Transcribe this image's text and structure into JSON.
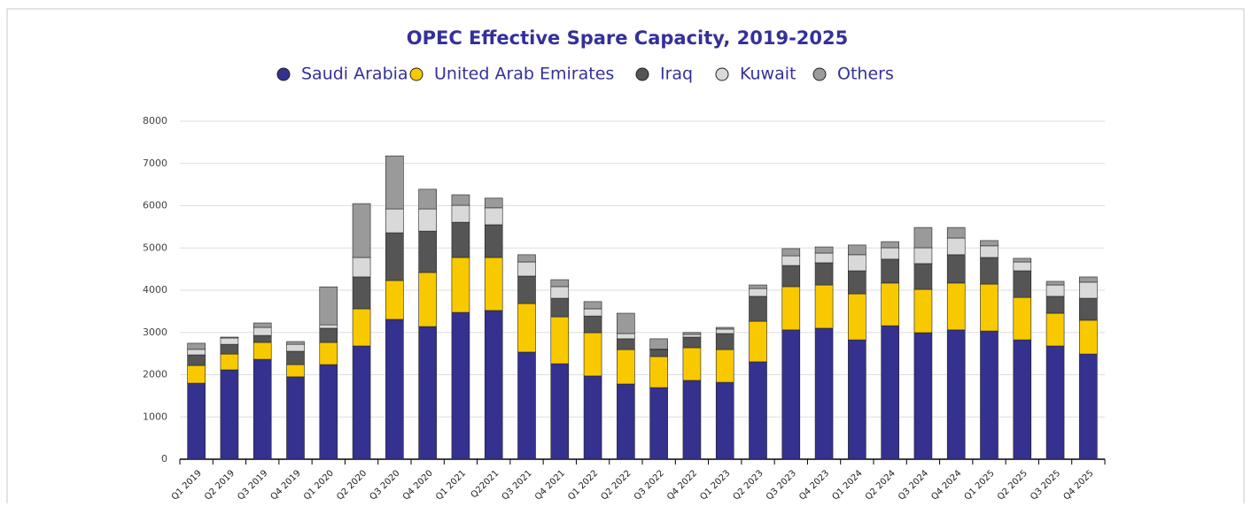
{
  "chart_data": {
    "type": "bar",
    "stacked": true,
    "title": "OPEC Effective Spare Capacity, 2019-2025",
    "categories": [
      "Q1 2019",
      "Q2 2019",
      "Q3 2019",
      "Q4 2019",
      "Q1 2020",
      "Q2 2020",
      "Q3 2020",
      "Q4 2020",
      "Q1 2021",
      "Q22021",
      "Q3 2021",
      "Q4 2021",
      "Q1 2022",
      "Q2 2022",
      "Q3 2022",
      "Q4 2022",
      "Q1 2023",
      "Q2 2023",
      "Q3 2023",
      "Q4 2023",
      "Q1 2024",
      "Q2 2024",
      "Q3 2024",
      "Q4 2024",
      "Q1 2025",
      "Q2 2025",
      "Q3 2025",
      "Q4 2025"
    ],
    "series": [
      {
        "name": "Saudi Arabia",
        "color": "#34318f",
        "values": [
          1800,
          2115,
          2365,
          1950,
          2240,
          2680,
          3310,
          3140,
          3475,
          3520,
          2535,
          2260,
          1970,
          1780,
          1695,
          1865,
          1820,
          2305,
          3060,
          3100,
          2825,
          3160,
          2995,
          3060,
          3035,
          2825,
          2680,
          2490
        ]
      },
      {
        "name": "United Arab Emirates",
        "color": "#f9c900",
        "values": [
          420,
          375,
          400,
          290,
          525,
          880,
          920,
          1280,
          1300,
          1255,
          1150,
          1110,
          1025,
          815,
          735,
          775,
          775,
          960,
          1025,
          1025,
          1090,
          1010,
          1025,
          1110,
          1110,
          1005,
          775,
          800
        ]
      },
      {
        "name": "Iraq",
        "color": "#555555",
        "values": [
          250,
          230,
          165,
          315,
          335,
          755,
          1130,
          980,
          835,
          775,
          650,
          440,
          395,
          255,
          165,
          250,
          380,
          590,
          500,
          525,
          545,
          565,
          610,
          670,
          630,
          630,
          400,
          520
        ]
      },
      {
        "name": "Kuwait",
        "color": "#d9d9d9",
        "values": [
          130,
          150,
          190,
          165,
          80,
          460,
          565,
          525,
          400,
          400,
          335,
          275,
          170,
          125,
          10,
          65,
          105,
          185,
          230,
          230,
          380,
          270,
          375,
          395,
          275,
          210,
          270,
          380
        ]
      },
      {
        "name": "Others",
        "color": "#9a9a9a",
        "values": [
          145,
          20,
          105,
          65,
          900,
          1275,
          1255,
          465,
          250,
          230,
          170,
          165,
          170,
          480,
          245,
          45,
          40,
          85,
          170,
          145,
          230,
          145,
          480,
          250,
          125,
          85,
          85,
          125
        ]
      }
    ],
    "ylim": [
      0,
      8000
    ],
    "yticks": [
      0,
      1000,
      2000,
      3000,
      4000,
      5000,
      6000,
      7000,
      8000
    ],
    "grid": true,
    "legend": "top"
  }
}
